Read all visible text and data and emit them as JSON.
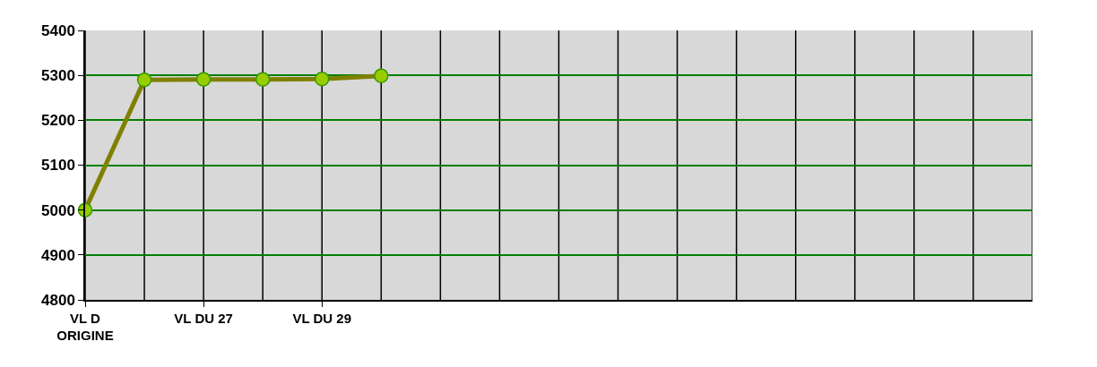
{
  "chart_data": {
    "type": "line",
    "categories": [
      "VL D ORIGINE",
      null,
      "VL DU 27",
      null,
      "VL DU 29",
      null,
      null,
      null,
      null,
      null,
      null,
      null,
      null,
      null,
      null,
      null,
      null
    ],
    "series": [
      {
        "color": "#808000",
        "values": [
          5000,
          5290,
          5291,
          5291,
          5292,
          5299,
          null,
          null,
          null,
          null,
          null,
          null,
          null,
          null,
          null,
          null,
          null
        ]
      }
    ],
    "ylim": [
      4800,
      5400
    ],
    "yticks": [
      4800,
      4900,
      5000,
      5100,
      5200,
      5300,
      5400
    ],
    "grid": true,
    "marker": "circle",
    "line_style": "solid",
    "legend": false
  }
}
